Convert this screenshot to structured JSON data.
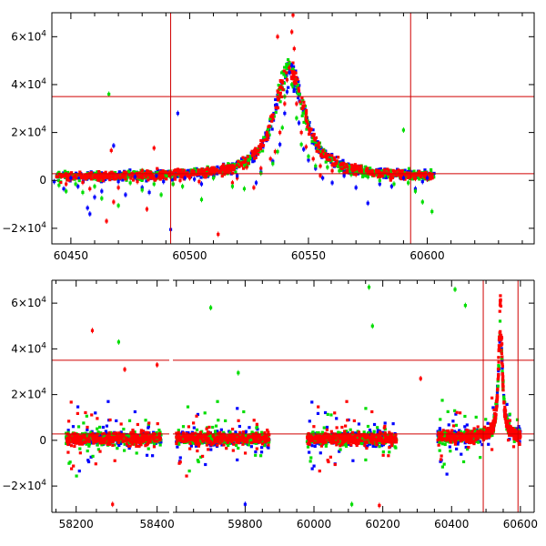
{
  "chart_data": [
    {
      "type": "scatter",
      "panel": "top",
      "xlim": [
        60442,
        60645
      ],
      "ylim": [
        -26500,
        70000
      ],
      "x_ticks": [
        60450,
        60500,
        60550,
        60600
      ],
      "y_ticks": [
        {
          "value": -20000,
          "mant": "−2×10",
          "exp": "4"
        },
        {
          "value": 0,
          "mant": "0",
          "exp": ""
        },
        {
          "value": 20000,
          "mant": "2×10",
          "exp": "4"
        },
        {
          "value": 40000,
          "mant": "4×10",
          "exp": "4"
        },
        {
          "value": 60000,
          "mant": "6×10",
          "exp": "4"
        }
      ],
      "hlines": [
        35000,
        2800
      ],
      "vlines": [
        60492,
        60593
      ],
      "grid": false,
      "colors": {
        "series1": "#ff0000",
        "series2": "#0000ff",
        "series3": "#00dd00",
        "lines": "#d00000"
      },
      "flare": {
        "peak_x": 60542,
        "peak_y": 47000,
        "baseline": 1500,
        "width_days": 7.5
      },
      "series": [
        {
          "color": "series1",
          "points": [
            [
              60446,
              1800
            ],
            [
              60448,
              -1500
            ],
            [
              60450,
              500
            ],
            [
              60455,
              -800
            ],
            [
              60458,
              -3500
            ],
            [
              60462,
              300
            ],
            [
              60465,
              -17000
            ],
            [
              60467,
              12500
            ],
            [
              60468,
              -9000
            ],
            [
              60470,
              -3000
            ],
            [
              60472,
              2500
            ],
            [
              60478,
              -500
            ],
            [
              60480,
              4000
            ],
            [
              60482,
              -12000
            ],
            [
              60485,
              13500
            ],
            [
              60486,
              800
            ],
            [
              60489,
              1200
            ],
            [
              60493,
              -1500
            ],
            [
              60496,
              0
            ],
            [
              60500,
              1000
            ],
            [
              60504,
              -500
            ],
            [
              60507,
              1800
            ],
            [
              60510,
              2200
            ],
            [
              60512,
              -22500
            ],
            [
              60515,
              3000
            ],
            [
              60518,
              -1000
            ],
            [
              60520,
              1000
            ],
            [
              60524,
              5500
            ],
            [
              60527,
              -3000
            ],
            [
              60530,
              5000
            ],
            [
              60534,
              9000
            ],
            [
              60536,
              12000
            ],
            [
              60538,
              20000
            ],
            [
              60540,
              32000
            ],
            [
              60541,
              42000
            ],
            [
              60542,
              47000
            ],
            [
              60543,
              62000
            ],
            [
              60543.5,
              69000
            ],
            [
              60544,
              41000
            ],
            [
              60545,
              32000
            ],
            [
              60547,
              20000
            ],
            [
              60549,
              14000
            ],
            [
              60552,
              9000
            ],
            [
              60555,
              6000
            ],
            [
              60560,
              4000
            ],
            [
              60565,
              3000
            ],
            [
              60570,
              2500
            ],
            [
              60575,
              3500
            ],
            [
              60580,
              1500
            ],
            [
              60585,
              1000
            ],
            [
              60590,
              1200
            ],
            [
              60595,
              800
            ],
            [
              60600,
              500
            ],
            [
              60602,
              1500
            ],
            [
              60555,
              2000
            ],
            [
              60560,
              6500
            ],
            [
              60537,
              60000
            ],
            [
              60544,
              55000
            ]
          ]
        },
        {
          "color": "series2",
          "points": [
            [
              60443,
              -500
            ],
            [
              60447,
              -3500
            ],
            [
              60450,
              1000
            ],
            [
              60453,
              -2500
            ],
            [
              60457,
              -11500
            ],
            [
              60458,
              -14000
            ],
            [
              60460,
              -7000
            ],
            [
              60463,
              -4500
            ],
            [
              60468,
              14500
            ],
            [
              60470,
              -500
            ],
            [
              60473,
              -6000
            ],
            [
              60477,
              1500
            ],
            [
              60480,
              -3000
            ],
            [
              60483,
              -5000
            ],
            [
              60486,
              2000
            ],
            [
              60489,
              -500
            ],
            [
              60492,
              -20500
            ],
            [
              60495,
              28000
            ],
            [
              60498,
              1000
            ],
            [
              60502,
              500
            ],
            [
              60505,
              -1500
            ],
            [
              60510,
              1500
            ],
            [
              60520,
              2000
            ],
            [
              60528,
              -1000
            ],
            [
              60530,
              3500
            ],
            [
              60535,
              8000
            ],
            [
              60538,
              15000
            ],
            [
              60540,
              28000
            ],
            [
              60541,
              37000
            ],
            [
              60542,
              45000
            ],
            [
              60543,
              48000
            ],
            [
              60544,
              38000
            ],
            [
              60546,
              24000
            ],
            [
              60548,
              13000
            ],
            [
              60550,
              8500
            ],
            [
              60553,
              5000
            ],
            [
              60556,
              1000
            ],
            [
              60560,
              -1000
            ],
            [
              60565,
              2000
            ],
            [
              60570,
              -3000
            ],
            [
              60575,
              -9500
            ],
            [
              60580,
              -1500
            ],
            [
              60585,
              -2500
            ],
            [
              60590,
              1000
            ],
            [
              60595,
              -3500
            ],
            [
              60598,
              -500
            ],
            [
              60600,
              1000
            ]
          ]
        },
        {
          "color": "series3",
          "points": [
            [
              60445,
              -2000
            ],
            [
              60448,
              -4500
            ],
            [
              60452,
              -1500
            ],
            [
              60455,
              -5000
            ],
            [
              60460,
              -2500
            ],
            [
              60463,
              -7500
            ],
            [
              60466,
              36000
            ],
            [
              60470,
              -10500
            ],
            [
              60475,
              -1000
            ],
            [
              60480,
              -4000
            ],
            [
              60485,
              -1500
            ],
            [
              60488,
              -6000
            ],
            [
              60493,
              -1500
            ],
            [
              60497,
              -2500
            ],
            [
              60505,
              -8000
            ],
            [
              60510,
              1000
            ],
            [
              60518,
              -2500
            ],
            [
              60523,
              -3500
            ],
            [
              60530,
              3000
            ],
            [
              60535,
              7000
            ],
            [
              60537,
              12000
            ],
            [
              60539,
              22000
            ],
            [
              60540,
              35000
            ],
            [
              60541,
              48000
            ],
            [
              60542,
              49000
            ],
            [
              60543,
              40000
            ],
            [
              60545,
              26000
            ],
            [
              60547,
              15000
            ],
            [
              60550,
              10000
            ],
            [
              60553,
              6000
            ],
            [
              60558,
              5500
            ],
            [
              60563,
              4000
            ],
            [
              60568,
              2500
            ],
            [
              60575,
              1500
            ],
            [
              60580,
              0
            ],
            [
              60586,
              -1500
            ],
            [
              60590,
              21000
            ],
            [
              60592,
              -1000
            ],
            [
              60595,
              -4500
            ],
            [
              60598,
              -9000
            ],
            [
              60602,
              -13000
            ]
          ]
        }
      ]
    },
    {
      "type": "scatter",
      "panel": "bottom",
      "xlim": [
        58140,
        60640
      ],
      "x_ticks": [
        58200,
        58400,
        59800,
        60000,
        60200,
        60400,
        60600
      ],
      "x_gap": [
        58430,
        59590
      ],
      "ylim": [
        -31500,
        70000
      ],
      "y_ticks": [
        {
          "value": -20000,
          "mant": "−2×10",
          "exp": "4"
        },
        {
          "value": 0,
          "mant": "0",
          "exp": ""
        },
        {
          "value": 20000,
          "mant": "2×10",
          "exp": "4"
        },
        {
          "value": 40000,
          "mant": "4×10",
          "exp": "4"
        },
        {
          "value": 60000,
          "mant": "6×10",
          "exp": "4"
        }
      ],
      "hlines": [
        35000,
        2800
      ],
      "vlines": [
        60492,
        60593
      ],
      "grid": false,
      "segments": [
        [
          58175,
          58410
        ],
        [
          59600,
          59870
        ],
        [
          59980,
          60240
        ],
        [
          60360,
          60600
        ]
      ],
      "outliers": [
        {
          "color": "series1",
          "x": 58240,
          "y": 48000
        },
        {
          "color": "series3",
          "x": 58305,
          "y": 43000
        },
        {
          "color": "series1",
          "x": 58320,
          "y": 31000
        },
        {
          "color": "series1",
          "x": 58400,
          "y": 33000
        },
        {
          "color": "series3",
          "x": 59700,
          "y": 58000
        },
        {
          "color": "series3",
          "x": 59780,
          "y": 29500
        },
        {
          "color": "series3",
          "x": 60160,
          "y": 67000
        },
        {
          "color": "series3",
          "x": 60170,
          "y": 50000
        },
        {
          "color": "series3",
          "x": 60410,
          "y": 66000
        },
        {
          "color": "series3",
          "x": 60440,
          "y": 59000
        },
        {
          "color": "series1",
          "x": 60310,
          "y": 27000
        },
        {
          "color": "series1",
          "x": 58290,
          "y": -28000
        },
        {
          "color": "series2",
          "x": 59800,
          "y": -28000
        },
        {
          "color": "series3",
          "x": 60110,
          "y": -28000
        },
        {
          "color": "series1",
          "x": 60190,
          "y": -28500
        }
      ]
    }
  ]
}
